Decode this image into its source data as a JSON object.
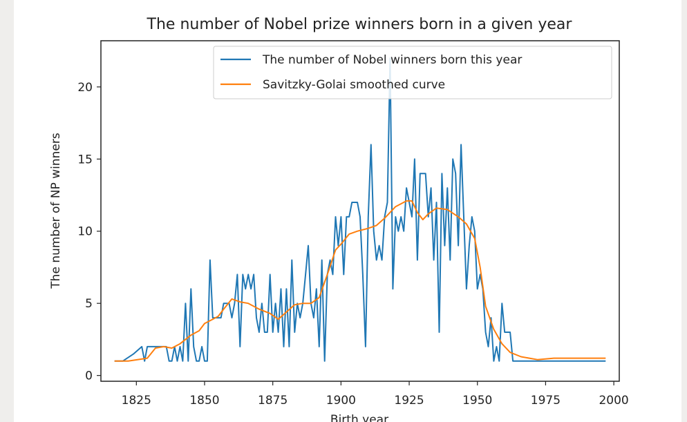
{
  "chart_data": {
    "type": "line",
    "title": "The number of Nobel prize winners born in a given year",
    "xlabel": "Birth year",
    "ylabel": "The number of NP winners",
    "xlim": [
      1812,
      2002
    ],
    "ylim": [
      -0.4,
      23.2
    ],
    "xticks": [
      1825,
      1850,
      1875,
      1900,
      1925,
      1950,
      1975,
      2000
    ],
    "yticks": [
      0,
      5,
      10,
      15,
      20
    ],
    "legend_position": "top-right",
    "grid": false,
    "series": [
      {
        "name": "The number of Nobel winners born this year",
        "color": "#1f77b4",
        "points": [
          [
            1817,
            1
          ],
          [
            1820,
            1
          ],
          [
            1824,
            1.5
          ],
          [
            1827,
            2
          ],
          [
            1828,
            1
          ],
          [
            1829,
            2
          ],
          [
            1833,
            2
          ],
          [
            1835,
            2
          ],
          [
            1836,
            2
          ],
          [
            1837,
            1
          ],
          [
            1838,
            1
          ],
          [
            1839,
            2
          ],
          [
            1840,
            1
          ],
          [
            1841,
            2
          ],
          [
            1842,
            1
          ],
          [
            1843,
            5
          ],
          [
            1844,
            1
          ],
          [
            1845,
            6
          ],
          [
            1846,
            2
          ],
          [
            1847,
            1
          ],
          [
            1848,
            1
          ],
          [
            1849,
            2
          ],
          [
            1850,
            1
          ],
          [
            1851,
            1
          ],
          [
            1852,
            8
          ],
          [
            1853,
            4
          ],
          [
            1854,
            4
          ],
          [
            1855,
            4
          ],
          [
            1856,
            4
          ],
          [
            1857,
            5
          ],
          [
            1858,
            5
          ],
          [
            1859,
            5
          ],
          [
            1860,
            4
          ],
          [
            1861,
            5
          ],
          [
            1862,
            7
          ],
          [
            1863,
            2
          ],
          [
            1864,
            7
          ],
          [
            1865,
            6
          ],
          [
            1866,
            7
          ],
          [
            1867,
            6
          ],
          [
            1868,
            7
          ],
          [
            1869,
            4
          ],
          [
            1870,
            3
          ],
          [
            1871,
            5
          ],
          [
            1872,
            3
          ],
          [
            1873,
            3
          ],
          [
            1874,
            7
          ],
          [
            1875,
            3
          ],
          [
            1876,
            5
          ],
          [
            1877,
            3
          ],
          [
            1878,
            6
          ],
          [
            1879,
            2
          ],
          [
            1880,
            6
          ],
          [
            1881,
            2
          ],
          [
            1882,
            8
          ],
          [
            1883,
            3
          ],
          [
            1884,
            5
          ],
          [
            1885,
            4
          ],
          [
            1886,
            5
          ],
          [
            1887,
            7
          ],
          [
            1888,
            9
          ],
          [
            1889,
            5
          ],
          [
            1890,
            4
          ],
          [
            1891,
            6
          ],
          [
            1892,
            2
          ],
          [
            1893,
            8
          ],
          [
            1894,
            1
          ],
          [
            1895,
            7
          ],
          [
            1896,
            8
          ],
          [
            1897,
            7
          ],
          [
            1898,
            11
          ],
          [
            1899,
            9
          ],
          [
            1900,
            11
          ],
          [
            1901,
            7
          ],
          [
            1902,
            11
          ],
          [
            1903,
            11
          ],
          [
            1904,
            12
          ],
          [
            1905,
            12
          ],
          [
            1906,
            12
          ],
          [
            1907,
            11
          ],
          [
            1908,
            7
          ],
          [
            1909,
            2
          ],
          [
            1910,
            11
          ],
          [
            1911,
            16
          ],
          [
            1912,
            10
          ],
          [
            1913,
            8
          ],
          [
            1914,
            9
          ],
          [
            1915,
            8
          ],
          [
            1916,
            11
          ],
          [
            1917,
            12
          ],
          [
            1918,
            22
          ],
          [
            1919,
            6
          ],
          [
            1920,
            11
          ],
          [
            1921,
            10
          ],
          [
            1922,
            11
          ],
          [
            1923,
            10
          ],
          [
            1924,
            13
          ],
          [
            1925,
            12
          ],
          [
            1926,
            11
          ],
          [
            1927,
            15
          ],
          [
            1928,
            8
          ],
          [
            1929,
            14
          ],
          [
            1930,
            14
          ],
          [
            1931,
            14
          ],
          [
            1932,
            11
          ],
          [
            1933,
            13
          ],
          [
            1934,
            8
          ],
          [
            1935,
            12
          ],
          [
            1936,
            3
          ],
          [
            1937,
            14
          ],
          [
            1938,
            9
          ],
          [
            1939,
            13
          ],
          [
            1940,
            8
          ],
          [
            1941,
            15
          ],
          [
            1942,
            14
          ],
          [
            1943,
            9
          ],
          [
            1944,
            16
          ],
          [
            1945,
            11
          ],
          [
            1946,
            6
          ],
          [
            1947,
            9
          ],
          [
            1948,
            11
          ],
          [
            1949,
            10
          ],
          [
            1950,
            6
          ],
          [
            1951,
            7
          ],
          [
            1952,
            6
          ],
          [
            1953,
            3
          ],
          [
            1954,
            2
          ],
          [
            1955,
            4
          ],
          [
            1956,
            1
          ],
          [
            1957,
            2
          ],
          [
            1958,
            1
          ],
          [
            1959,
            5
          ],
          [
            1960,
            3
          ],
          [
            1961,
            3
          ],
          [
            1962,
            3
          ],
          [
            1963,
            1
          ],
          [
            1965,
            1
          ],
          [
            1970,
            1
          ],
          [
            1980,
            1
          ],
          [
            1997,
            1
          ]
        ]
      },
      {
        "name": "Savitzky-Golai smoothed curve",
        "color": "#ff7f0e",
        "points": [
          [
            1817,
            1
          ],
          [
            1822,
            1
          ],
          [
            1829,
            1.2
          ],
          [
            1832,
            1.9
          ],
          [
            1835,
            2
          ],
          [
            1838,
            1.9
          ],
          [
            1841,
            2.2
          ],
          [
            1845,
            2.8
          ],
          [
            1848,
            3.1
          ],
          [
            1850,
            3.6
          ],
          [
            1853,
            3.9
          ],
          [
            1855,
            4.1
          ],
          [
            1857,
            4.6
          ],
          [
            1860,
            5.3
          ],
          [
            1863,
            5.1
          ],
          [
            1866,
            5.0
          ],
          [
            1870,
            4.6
          ],
          [
            1874,
            4.3
          ],
          [
            1877,
            3.9
          ],
          [
            1880,
            4.4
          ],
          [
            1883,
            4.9
          ],
          [
            1886,
            5.0
          ],
          [
            1889,
            5.0
          ],
          [
            1892,
            5.4
          ],
          [
            1895,
            7.0
          ],
          [
            1898,
            8.7
          ],
          [
            1900,
            9.1
          ],
          [
            1903,
            9.8
          ],
          [
            1906,
            10.0
          ],
          [
            1910,
            10.2
          ],
          [
            1913,
            10.4
          ],
          [
            1916,
            10.9
          ],
          [
            1920,
            11.7
          ],
          [
            1924,
            12.1
          ],
          [
            1926,
            12.1
          ],
          [
            1928,
            11.3
          ],
          [
            1930,
            10.8
          ],
          [
            1932,
            11.2
          ],
          [
            1935,
            11.6
          ],
          [
            1939,
            11.5
          ],
          [
            1943,
            11.0
          ],
          [
            1946,
            10.5
          ],
          [
            1949,
            9.5
          ],
          [
            1951,
            7.5
          ],
          [
            1953,
            4.8
          ],
          [
            1956,
            3.2
          ],
          [
            1959,
            2.2
          ],
          [
            1962,
            1.6
          ],
          [
            1966,
            1.3
          ],
          [
            1972,
            1.1
          ],
          [
            1978,
            1.2
          ],
          [
            1985,
            1.2
          ],
          [
            1997,
            1.2
          ]
        ]
      }
    ]
  }
}
